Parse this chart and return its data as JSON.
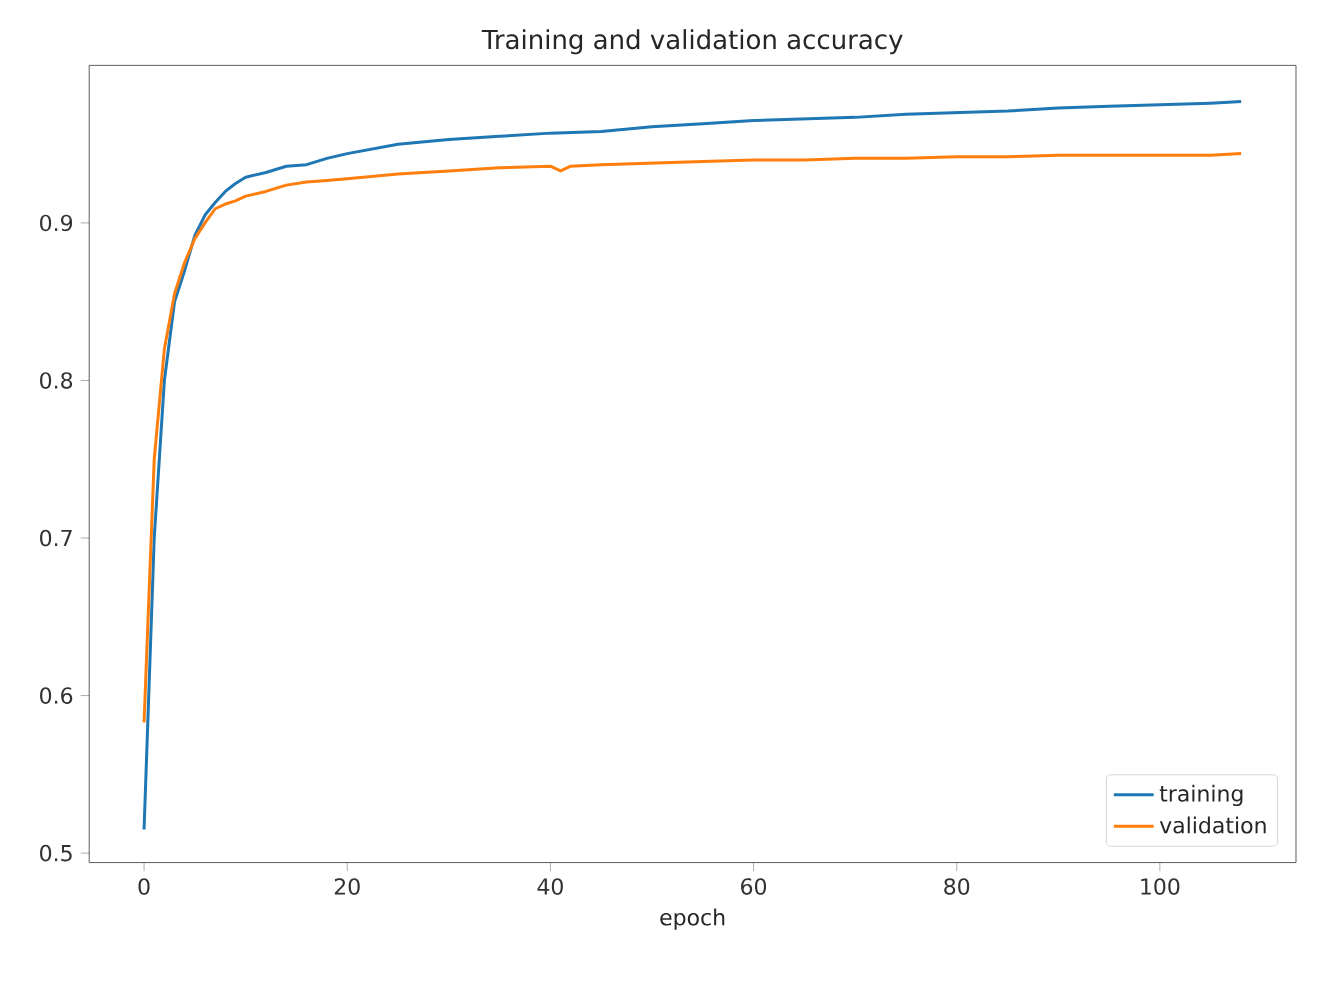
{
  "chart_data": {
    "type": "line",
    "title": "Training and validation accuracy",
    "xlabel": "epoch",
    "xlim": [
      -5.4,
      113.4
    ],
    "ylim": [
      0.494,
      1.0
    ],
    "xticks": [
      0,
      20,
      40,
      60,
      80,
      100
    ],
    "yticks": [
      0.5,
      0.6,
      0.7,
      0.8,
      0.9
    ],
    "grid": false,
    "legend": "bottom right",
    "marker": "none",
    "line_style": "solid",
    "series": [
      {
        "name": "training",
        "color": "#1f77b4",
        "x": [
          0,
          1,
          2,
          3,
          4,
          5,
          6,
          7,
          8,
          9,
          10,
          12,
          14,
          16,
          18,
          20,
          25,
          30,
          35,
          40,
          45,
          50,
          55,
          60,
          65,
          70,
          75,
          80,
          85,
          90,
          95,
          100,
          105,
          108
        ],
        "values": [
          0.515,
          0.7,
          0.8,
          0.85,
          0.87,
          0.892,
          0.905,
          0.913,
          0.92,
          0.925,
          0.929,
          0.932,
          0.936,
          0.937,
          0.941,
          0.944,
          0.95,
          0.953,
          0.955,
          0.957,
          0.958,
          0.961,
          0.963,
          0.965,
          0.966,
          0.967,
          0.969,
          0.97,
          0.971,
          0.973,
          0.974,
          0.975,
          0.976,
          0.977
        ]
      },
      {
        "name": "validation",
        "color": "#ff7f0e",
        "x": [
          0,
          1,
          2,
          3,
          4,
          5,
          6,
          7,
          8,
          9,
          10,
          12,
          14,
          16,
          18,
          20,
          25,
          30,
          35,
          40,
          41,
          42,
          45,
          50,
          55,
          60,
          65,
          70,
          75,
          80,
          85,
          90,
          95,
          100,
          105,
          108
        ],
        "values": [
          0.583,
          0.75,
          0.82,
          0.855,
          0.875,
          0.89,
          0.9,
          0.909,
          0.912,
          0.914,
          0.917,
          0.92,
          0.924,
          0.926,
          0.927,
          0.928,
          0.931,
          0.933,
          0.935,
          0.936,
          0.933,
          0.936,
          0.937,
          0.938,
          0.939,
          0.94,
          0.94,
          0.941,
          0.941,
          0.942,
          0.942,
          0.943,
          0.943,
          0.943,
          0.943,
          0.944
        ]
      }
    ]
  }
}
